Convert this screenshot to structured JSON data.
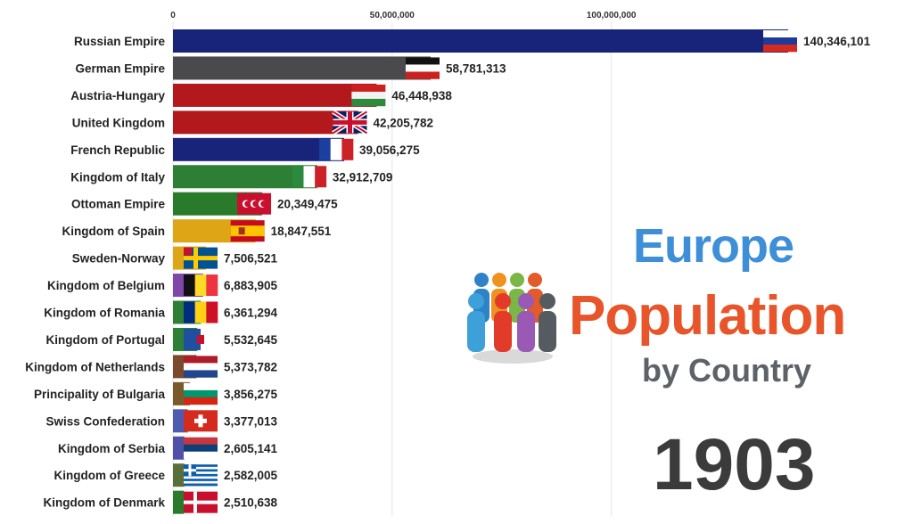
{
  "chart_data": {
    "type": "bar",
    "orientation": "horizontal",
    "title": "Europe Population by Country",
    "title_parts": {
      "line1": "Europe",
      "line2": "Population",
      "line3": "by Country"
    },
    "year": "1903",
    "xlim": [
      0,
      140346101
    ],
    "xticks": [
      {
        "value": 0,
        "label": "0"
      },
      {
        "value": 50000000,
        "label": "50,000,000"
      },
      {
        "value": 100000000,
        "label": "100,000,000"
      }
    ],
    "grid": true,
    "legend": "none",
    "categories": [
      "Russian Empire",
      "German Empire",
      "Austria-Hungary",
      "United Kingdom",
      "French Republic",
      "Kingdom of Italy",
      "Ottoman Empire",
      "Kingdom of Spain",
      "Sweden-Norway",
      "Kingdom of Belgium",
      "Kingdom of Romania",
      "Kingdom of Portugal",
      "Kingdom of Netherlands",
      "Principality of Bulgaria",
      "Swiss Confederation",
      "Kingdom of Serbia",
      "Kingdom of Greece",
      "Kingdom of Denmark"
    ],
    "values": [
      140346101,
      58781313,
      46448938,
      42205782,
      39056275,
      32912709,
      20349475,
      18847551,
      7506521,
      6883905,
      6361294,
      5532645,
      5373782,
      3856275,
      3377013,
      2605141,
      2582005,
      2510638
    ],
    "value_labels": [
      "140,346,101",
      "58,781,313",
      "46,448,938",
      "42,205,782",
      "39,056,275",
      "32,912,709",
      "20,349,475",
      "18,847,551",
      "7,506,521",
      "6,883,905",
      "6,361,294",
      "5,532,645",
      "5,373,782",
      "3,856,275",
      "3,377,013",
      "2,605,141",
      "2,582,005",
      "2,510,638"
    ],
    "bar_colors": [
      "#18237a",
      "#4a4a4d",
      "#b3191c",
      "#b3191c",
      "#18237a",
      "#2c7f35",
      "#2a7a2c",
      "#dea516",
      "#dea516",
      "#7e47a8",
      "#2c7f35",
      "#2c7f35",
      "#7a4a2a",
      "#7a5a2a",
      "#4d5cb0",
      "#5050a8",
      "#5a6e3a",
      "#2a7a2c"
    ],
    "flags": [
      {
        "kind": "h3",
        "colors": [
          "#ffffff",
          "#1e3a9a",
          "#d52b1e"
        ]
      },
      {
        "kind": "h3",
        "colors": [
          "#111111",
          "#ffffff",
          "#cc1f1f"
        ]
      },
      {
        "kind": "h3",
        "colors": [
          "#cc1f1f",
          "#f2f2f2",
          "#2f8a3e"
        ]
      },
      {
        "kind": "union"
      },
      {
        "kind": "v3",
        "colors": [
          "#1b3fa0",
          "#ffffff",
          "#cc2127"
        ]
      },
      {
        "kind": "v3",
        "colors": [
          "#2c8a3e",
          "#ffffff",
          "#cc2127"
        ]
      },
      {
        "kind": "crescents",
        "colors": [
          "#c8102e",
          "#ffffff"
        ]
      },
      {
        "kind": "spain",
        "colors": [
          "#c60b1e",
          "#ffc400"
        ]
      },
      {
        "kind": "nordic",
        "colors": [
          "#005293",
          "#fecb00",
          "#c8102e"
        ]
      },
      {
        "kind": "v3",
        "colors": [
          "#111111",
          "#fdda24",
          "#ef3340"
        ]
      },
      {
        "kind": "v3",
        "colors": [
          "#002b7f",
          "#fcd116",
          "#ce1126"
        ]
      },
      {
        "kind": "portugal",
        "colors": [
          "#1f4fa0",
          "#ffffff"
        ]
      },
      {
        "kind": "h3",
        "colors": [
          "#ae1c28",
          "#ffffff",
          "#21468b"
        ]
      },
      {
        "kind": "h3",
        "colors": [
          "#ffffff",
          "#00966e",
          "#d62612"
        ]
      },
      {
        "kind": "swiss",
        "colors": [
          "#d52b1e",
          "#ffffff"
        ]
      },
      {
        "kind": "h3",
        "colors": [
          "#c6363c",
          "#0c4076",
          "#ffffff"
        ]
      },
      {
        "kind": "greece",
        "colors": [
          "#0d5eaf",
          "#ffffff"
        ]
      },
      {
        "kind": "denmark",
        "colors": [
          "#c8102e",
          "#ffffff"
        ]
      }
    ],
    "people_icon_colors": [
      "#2e82c6",
      "#f0921f",
      "#7ab648",
      "#e35a2b",
      "#3ea0d8",
      "#e23b2a",
      "#9b59b6",
      "#555b61"
    ]
  }
}
